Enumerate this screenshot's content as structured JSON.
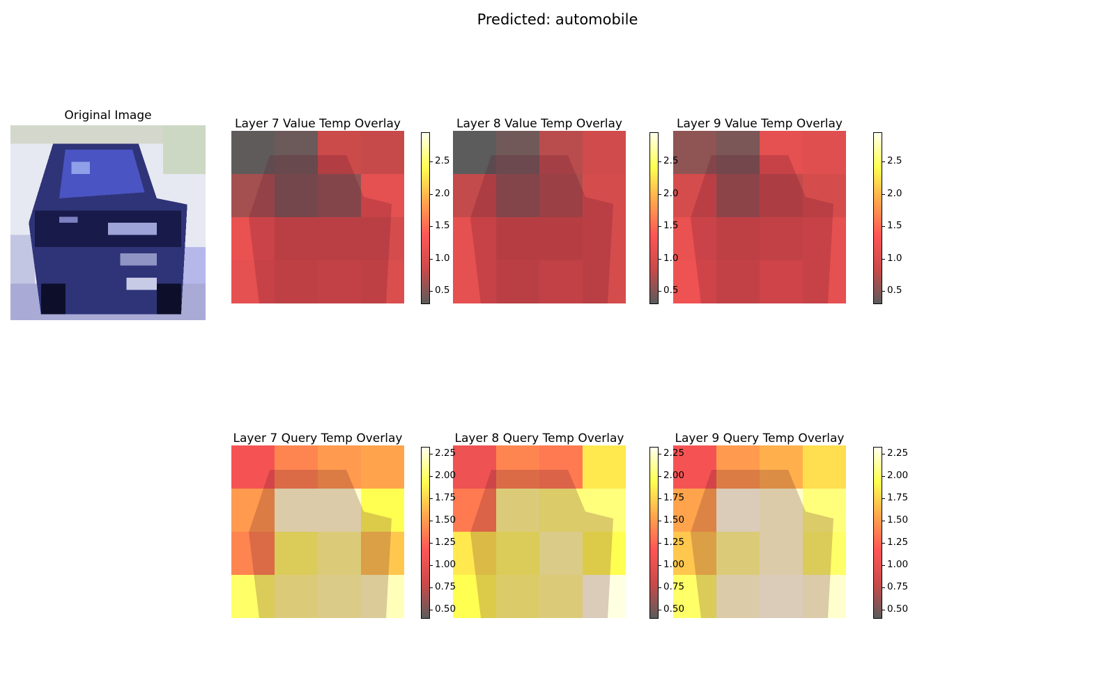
{
  "figure": {
    "suptitle": "Predicted: automobile"
  },
  "original": {
    "title": "Original Image"
  },
  "panels": [
    {
      "title": "Layer 7 Value Temp Overlay",
      "heat": [
        [
          0.32,
          0.38,
          0.85,
          0.82
        ],
        [
          0.65,
          0.45,
          0.55,
          1.1
        ],
        [
          1.15,
          0.95,
          0.95,
          0.95
        ],
        [
          1.1,
          1.0,
          1.05,
          1.0
        ]
      ]
    },
    {
      "title": "Layer 8 Value Temp Overlay",
      "heat": [
        [
          0.3,
          0.4,
          0.75,
          0.9
        ],
        [
          0.8,
          0.55,
          0.7,
          0.95
        ],
        [
          1.1,
          0.9,
          0.9,
          0.95
        ],
        [
          1.1,
          0.95,
          1.05,
          0.95
        ]
      ]
    },
    {
      "title": "Layer 9 Value Temp Overlay",
      "heat": [
        [
          0.55,
          0.45,
          1.1,
          1.05
        ],
        [
          0.95,
          0.6,
          0.8,
          0.95
        ],
        [
          1.15,
          1.0,
          1.05,
          1.1
        ],
        [
          1.2,
          1.05,
          1.2,
          1.1
        ]
      ]
    },
    {
      "title": "Layer 7 Query Temp Overlay",
      "heat": [
        [
          1.1,
          1.4,
          1.5,
          1.55
        ],
        [
          1.5,
          2.25,
          2.25,
          1.95
        ],
        [
          1.4,
          2.0,
          2.1,
          1.7
        ],
        [
          2.0,
          2.1,
          2.15,
          2.2
        ]
      ]
    },
    {
      "title": "Layer 8 Query Temp Overlay",
      "heat": [
        [
          1.05,
          1.4,
          1.35,
          1.85
        ],
        [
          1.35,
          2.1,
          2.05,
          2.05
        ],
        [
          1.85,
          2.0,
          2.15,
          1.95
        ],
        [
          1.95,
          2.05,
          2.1,
          2.3
        ]
      ]
    },
    {
      "title": "Layer 9 Query Temp Overlay",
      "heat": [
        [
          1.1,
          1.5,
          1.6,
          1.8
        ],
        [
          1.55,
          2.3,
          2.25,
          2.05
        ],
        [
          1.7,
          2.1,
          2.25,
          2.0
        ],
        [
          2.0,
          2.25,
          2.3,
          2.25
        ]
      ]
    }
  ],
  "colorbars": [
    {
      "range": [
        0.3,
        2.95
      ],
      "ticks": [
        "0.5",
        "1.0",
        "1.5",
        "2.0",
        "2.5"
      ]
    },
    {
      "range": [
        0.4,
        2.33
      ],
      "ticks": [
        "0.50",
        "0.75",
        "1.00",
        "1.25",
        "1.50",
        "1.75",
        "2.00",
        "2.25"
      ]
    }
  ],
  "colormap": {
    "name": "hot",
    "stops": [
      "#5c5c5c",
      "#c94a4a",
      "#ff5555",
      "#ffa64d",
      "#ffff50",
      "#ffffee"
    ]
  }
}
